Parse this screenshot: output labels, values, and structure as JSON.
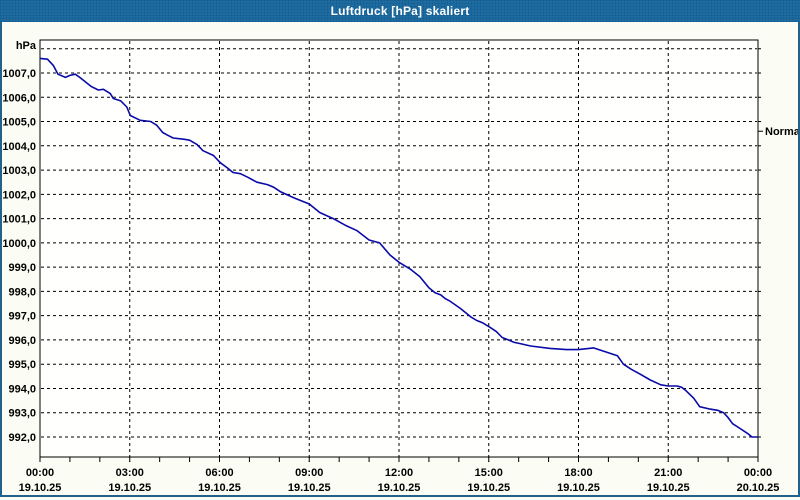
{
  "window": {
    "title": "Luftdruck [hPa] skaliert"
  },
  "colors": {
    "titlebar": "#1d6ca2",
    "titlebar_text": "#ffffff",
    "window_border": "#1f628e",
    "background": "#fbfcf3",
    "plot_background": "#fffffe",
    "grid": "#000000",
    "axis_text": "#000000",
    "series_line": "#0a0aa8"
  },
  "chart_data": {
    "type": "line",
    "title": "Luftdruck [hPa] skaliert",
    "y_unit": "hPa",
    "grid": "dashed, horizontal every 1 hPa, vertical every 3 h",
    "legend_position": "none",
    "x_axis": {
      "range_hours": [
        0,
        24
      ],
      "gridline_hours": [
        3,
        6,
        9,
        12,
        15,
        18,
        21
      ],
      "minor_tick_every_hours": 1,
      "ticks": [
        {
          "time": "00:00",
          "date": "19.10.25",
          "hour": 0
        },
        {
          "time": "03:00",
          "date": "19.10.25",
          "hour": 3
        },
        {
          "time": "06:00",
          "date": "19.10.25",
          "hour": 6
        },
        {
          "time": "09:00",
          "date": "19.10.25",
          "hour": 9
        },
        {
          "time": "12:00",
          "date": "19.10.25",
          "hour": 12
        },
        {
          "time": "15:00",
          "date": "19.10.25",
          "hour": 15
        },
        {
          "time": "18:00",
          "date": "19.10.25",
          "hour": 18
        },
        {
          "time": "21:00",
          "date": "19.10.25",
          "hour": 21
        },
        {
          "time": "00:00",
          "date": "20.10.25",
          "hour": 24
        }
      ]
    },
    "y_axis": {
      "range": [
        991.2,
        1008.4
      ],
      "gridline_values": [
        1008,
        1007,
        1006,
        1005,
        1004,
        1003,
        1002,
        1001,
        1000,
        999,
        998,
        997,
        996,
        995,
        994,
        993,
        992
      ],
      "ticks": [
        {
          "label": "1007,0",
          "value": 1007
        },
        {
          "label": "1006,0",
          "value": 1006
        },
        {
          "label": "1005,0",
          "value": 1005
        },
        {
          "label": "1004,0",
          "value": 1004
        },
        {
          "label": "1003,0",
          "value": 1003
        },
        {
          "label": "1002,0",
          "value": 1002
        },
        {
          "label": "1001,0",
          "value": 1001
        },
        {
          "label": "1000,0",
          "value": 1000
        },
        {
          "label": "999,0",
          "value": 999
        },
        {
          "label": "998,0",
          "value": 998
        },
        {
          "label": "997,0",
          "value": 997
        },
        {
          "label": "996,0",
          "value": 996
        },
        {
          "label": "995,0",
          "value": 995
        },
        {
          "label": "994,0",
          "value": 994
        },
        {
          "label": "993,0",
          "value": 993
        },
        {
          "label": "992,0",
          "value": 992
        }
      ]
    },
    "annotations": [
      {
        "label": "Normal",
        "value": 1004.6,
        "side": "right"
      }
    ],
    "series": [
      {
        "name": "Luftdruck",
        "color": "#0a0aa8",
        "points": [
          [
            0,
            1007.6
          ],
          [
            0.25,
            1007.57
          ],
          [
            0.45,
            1007.3
          ],
          [
            0.6,
            1006.95
          ],
          [
            0.85,
            1006.82
          ],
          [
            1.0,
            1006.9
          ],
          [
            1.18,
            1006.95
          ],
          [
            1.35,
            1006.8
          ],
          [
            1.7,
            1006.45
          ],
          [
            1.95,
            1006.3
          ],
          [
            2.12,
            1006.33
          ],
          [
            2.35,
            1006.15
          ],
          [
            2.45,
            1005.95
          ],
          [
            2.7,
            1005.85
          ],
          [
            2.9,
            1005.6
          ],
          [
            3.02,
            1005.25
          ],
          [
            3.35,
            1005.05
          ],
          [
            3.7,
            1005.0
          ],
          [
            3.9,
            1004.85
          ],
          [
            4.1,
            1004.55
          ],
          [
            4.25,
            1004.45
          ],
          [
            4.45,
            1004.32
          ],
          [
            4.8,
            1004.27
          ],
          [
            5.0,
            1004.23
          ],
          [
            5.25,
            1004.05
          ],
          [
            5.45,
            1003.8
          ],
          [
            5.8,
            1003.6
          ],
          [
            6.03,
            1003.3
          ],
          [
            6.25,
            1003.1
          ],
          [
            6.45,
            1002.9
          ],
          [
            6.7,
            1002.85
          ],
          [
            6.95,
            1002.7
          ],
          [
            7.25,
            1002.5
          ],
          [
            7.6,
            1002.4
          ],
          [
            7.8,
            1002.3
          ],
          [
            8.05,
            1002.1
          ],
          [
            8.5,
            1001.85
          ],
          [
            9.0,
            1001.6
          ],
          [
            9.35,
            1001.25
          ],
          [
            9.8,
            1001.0
          ],
          [
            10.25,
            1000.7
          ],
          [
            10.6,
            1000.5
          ],
          [
            11.0,
            1000.12
          ],
          [
            11.35,
            1000.0
          ],
          [
            11.7,
            999.5
          ],
          [
            12.0,
            999.2
          ],
          [
            12.4,
            998.9
          ],
          [
            12.7,
            998.6
          ],
          [
            13.0,
            998.15
          ],
          [
            13.2,
            997.95
          ],
          [
            13.4,
            997.85
          ],
          [
            13.55,
            997.7
          ],
          [
            13.7,
            997.6
          ],
          [
            14.05,
            997.3
          ],
          [
            14.4,
            996.95
          ],
          [
            14.6,
            996.8
          ],
          [
            14.8,
            996.7
          ],
          [
            15.0,
            996.55
          ],
          [
            15.25,
            996.35
          ],
          [
            15.45,
            996.1
          ],
          [
            15.65,
            996.0
          ],
          [
            15.85,
            995.9
          ],
          [
            16.05,
            995.85
          ],
          [
            16.4,
            995.75
          ],
          [
            17.05,
            995.65
          ],
          [
            17.6,
            995.6
          ],
          [
            18.0,
            995.6
          ],
          [
            18.5,
            995.67
          ],
          [
            19.05,
            995.45
          ],
          [
            19.3,
            995.35
          ],
          [
            19.5,
            995.0
          ],
          [
            19.75,
            994.8
          ],
          [
            20.05,
            994.6
          ],
          [
            20.4,
            994.35
          ],
          [
            20.75,
            994.15
          ],
          [
            21.0,
            994.1
          ],
          [
            21.3,
            994.1
          ],
          [
            21.45,
            994.05
          ],
          [
            21.6,
            993.9
          ],
          [
            21.85,
            993.6
          ],
          [
            22.05,
            993.25
          ],
          [
            22.4,
            993.15
          ],
          [
            22.65,
            993.1
          ],
          [
            22.85,
            993.0
          ],
          [
            23.0,
            992.8
          ],
          [
            23.15,
            992.55
          ],
          [
            23.4,
            992.35
          ],
          [
            23.65,
            992.15
          ],
          [
            23.8,
            992.0
          ],
          [
            24.0,
            992.0
          ]
        ]
      }
    ]
  }
}
